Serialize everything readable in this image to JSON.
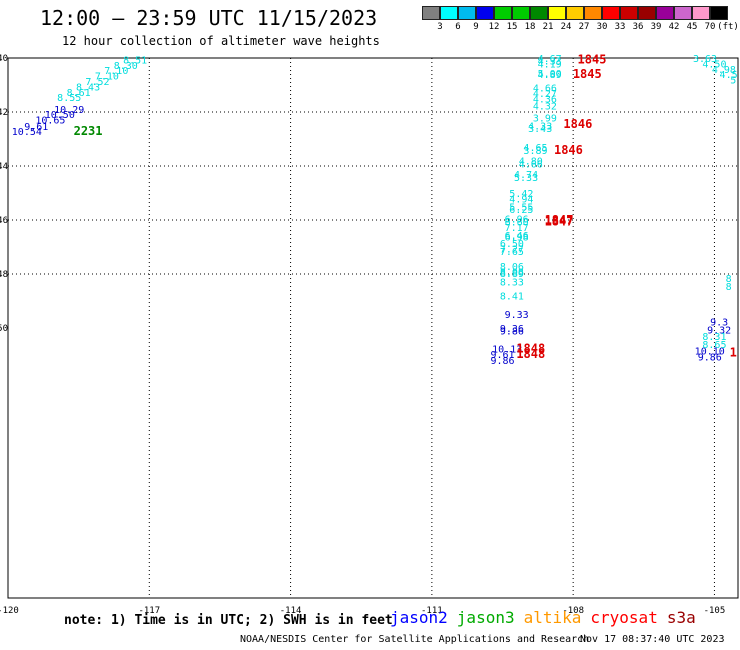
{
  "header": {
    "title": "12:00 — 23:59 UTC 11/15/2023",
    "subtitle": "12 hour collection of altimeter wave heights"
  },
  "legend": {
    "colors": [
      "#808080",
      "#00ffff",
      "#00bbee",
      "#0000ee",
      "#00cc00",
      "#00cc00",
      "#008800",
      "#ffff00",
      "#ffcc00",
      "#ff8800",
      "#ff0000",
      "#cc0000",
      "#990000",
      "#990099",
      "#cc66cc",
      "#ff99cc",
      "#000000"
    ],
    "labels": [
      "3",
      "6",
      "9",
      "12",
      "15",
      "18",
      "21",
      "24",
      "27",
      "30",
      "33",
      "36",
      "39",
      "42",
      "45",
      "70",
      "(ft)"
    ]
  },
  "chart_data": {
    "type": "scatter",
    "xlim": [
      -120,
      -104.5
    ],
    "ylim": [
      40,
      60
    ],
    "x_ticks": [
      "-120",
      "-117",
      "-114",
      "-111",
      "-108",
      "-105"
    ],
    "y_ticks": [
      "-40",
      "-42",
      "-44",
      "-46",
      "-48",
      "-50"
    ],
    "grid": true,
    "series": [
      {
        "name": "jason2",
        "color": "#0000cc",
        "points": [
          {
            "lon": -119.6,
            "lat": 42.7,
            "label": "10.54"
          },
          {
            "lon": -119.4,
            "lat": 42.51,
            "label": "9.61"
          },
          {
            "lon": -119.1,
            "lat": 42.28,
            "label": "10.65"
          },
          {
            "lon": -118.9,
            "lat": 42.08,
            "label": "10.50"
          },
          {
            "lon": -118.7,
            "lat": 41.88,
            "label": "10.29"
          },
          {
            "lon": -109.2,
            "lat": 49.48,
            "label": "9.33"
          },
          {
            "lon": -109.3,
            "lat": 50.0,
            "label": "9.36"
          },
          {
            "lon": -109.3,
            "lat": 50.1,
            "label": "9.86"
          },
          {
            "lon": -109.4,
            "lat": 50.75,
            "label": "10.13"
          },
          {
            "lon": -109.5,
            "lat": 50.97,
            "label": "9.61"
          },
          {
            "lon": -109.5,
            "lat": 51.18,
            "label": "9.86"
          },
          {
            "lon": -105.1,
            "lat": 50.83,
            "label": "10.10"
          },
          {
            "lon": -105.1,
            "lat": 51.05,
            "label": "9.86"
          },
          {
            "lon": -104.9,
            "lat": 49.76,
            "label": "9.3"
          },
          {
            "lon": -104.9,
            "lat": 50.05,
            "label": "9.32"
          }
        ]
      },
      {
        "name": "jason3",
        "color": "#008800",
        "points": [
          {
            "lon": -118.3,
            "lat": 42.7,
            "label": "2231"
          }
        ]
      },
      {
        "name": "altika",
        "color": "#00dddd",
        "points": [
          {
            "lon": -117.3,
            "lat": 40.05,
            "label": "8.51"
          },
          {
            "lon": -117.5,
            "lat": 40.25,
            "label": "8.30"
          },
          {
            "lon": -117.7,
            "lat": 40.45,
            "label": "7.10"
          },
          {
            "lon": -117.9,
            "lat": 40.65,
            "label": "7.10"
          },
          {
            "lon": -118.1,
            "lat": 40.85,
            "label": "7.52"
          },
          {
            "lon": -118.3,
            "lat": 41.05,
            "label": "8.43"
          },
          {
            "lon": -118.5,
            "lat": 41.25,
            "label": "8.61"
          },
          {
            "lon": -118.7,
            "lat": 41.45,
            "label": "8.55"
          },
          {
            "lon": -108.5,
            "lat": 40.0,
            "label": "4.67"
          },
          {
            "lon": -108.5,
            "lat": 40.1,
            "label": "4.33"
          },
          {
            "lon": -108.5,
            "lat": 40.2,
            "label": "4.19"
          },
          {
            "lon": -108.5,
            "lat": 40.55,
            "label": "5.00"
          },
          {
            "lon": -108.5,
            "lat": 40.6,
            "label": "4.89"
          },
          {
            "lon": -108.6,
            "lat": 41.1,
            "label": "4.66"
          },
          {
            "lon": -108.6,
            "lat": 41.3,
            "label": "4.27"
          },
          {
            "lon": -108.6,
            "lat": 41.5,
            "label": "4.36"
          },
          {
            "lon": -108.6,
            "lat": 41.75,
            "label": "4.32"
          },
          {
            "lon": -108.6,
            "lat": 42.2,
            "label": "3.99"
          },
          {
            "lon": -108.7,
            "lat": 42.5,
            "label": "4.33"
          },
          {
            "lon": -108.7,
            "lat": 42.6,
            "label": "3.43"
          },
          {
            "lon": -108.8,
            "lat": 43.3,
            "label": "4.65"
          },
          {
            "lon": -108.8,
            "lat": 43.4,
            "label": "3.89"
          },
          {
            "lon": -108.9,
            "lat": 43.8,
            "label": "4.80"
          },
          {
            "lon": -108.9,
            "lat": 43.9,
            "label": "4.66"
          },
          {
            "lon": -109.0,
            "lat": 44.3,
            "label": "4.74"
          },
          {
            "lon": -109.0,
            "lat": 44.4,
            "label": "5.33"
          },
          {
            "lon": -109.1,
            "lat": 45.0,
            "label": "5.42"
          },
          {
            "lon": -109.1,
            "lat": 45.2,
            "label": "4.94"
          },
          {
            "lon": -109.1,
            "lat": 45.5,
            "label": "5.55"
          },
          {
            "lon": -109.1,
            "lat": 45.6,
            "label": "6.25"
          },
          {
            "lon": -109.2,
            "lat": 45.95,
            "label": "6.96"
          },
          {
            "lon": -109.2,
            "lat": 46.05,
            "label": "6.60"
          },
          {
            "lon": -109.2,
            "lat": 46.25,
            "label": "7.17"
          },
          {
            "lon": -109.2,
            "lat": 46.55,
            "label": "6.46"
          },
          {
            "lon": -109.2,
            "lat": 46.62,
            "label": "6.98"
          },
          {
            "lon": -109.3,
            "lat": 46.85,
            "label": "6.50"
          },
          {
            "lon": -109.3,
            "lat": 47.05,
            "label": "7.27"
          },
          {
            "lon": -109.3,
            "lat": 47.15,
            "label": "7.65"
          },
          {
            "lon": -109.3,
            "lat": 47.7,
            "label": "8.06"
          },
          {
            "lon": -109.3,
            "lat": 47.9,
            "label": "8.08"
          },
          {
            "lon": -109.3,
            "lat": 47.97,
            "label": "8.89"
          },
          {
            "lon": -109.3,
            "lat": 48.28,
            "label": "8.33"
          },
          {
            "lon": -109.3,
            "lat": 48.8,
            "label": "8.41"
          },
          {
            "lon": -105.2,
            "lat": 40.0,
            "label": "3.63"
          },
          {
            "lon": -105.0,
            "lat": 40.2,
            "label": "4.50"
          },
          {
            "lon": -104.8,
            "lat": 40.4,
            "label": "4.98"
          },
          {
            "lon": -104.7,
            "lat": 40.6,
            "label": "4.5"
          },
          {
            "lon": -104.6,
            "lat": 40.8,
            "label": "5"
          },
          {
            "lon": -104.7,
            "lat": 48.15,
            "label": "8"
          },
          {
            "lon": -104.7,
            "lat": 48.45,
            "label": "8"
          },
          {
            "lon": -105.0,
            "lat": 50.3,
            "label": "8.31"
          },
          {
            "lon": -105.0,
            "lat": 50.6,
            "label": "8.65"
          }
        ]
      },
      {
        "name": "cryosat",
        "color": "#dd0000",
        "points": [
          {
            "lon": -107.6,
            "lat": 40.05,
            "label": "1845"
          },
          {
            "lon": -107.7,
            "lat": 40.6,
            "label": "1845"
          },
          {
            "lon": -107.9,
            "lat": 42.45,
            "label": "1846"
          },
          {
            "lon": -108.1,
            "lat": 43.4,
            "label": "1846"
          },
          {
            "lon": -108.3,
            "lat": 46.0,
            "label": "1847"
          },
          {
            "lon": -108.3,
            "lat": 46.05,
            "label": "1847"
          },
          {
            "lon": -108.9,
            "lat": 50.75,
            "label": "1848"
          },
          {
            "lon": -108.9,
            "lat": 50.97,
            "label": "1848"
          },
          {
            "lon": -104.6,
            "lat": 50.9,
            "label": "1"
          }
        ]
      }
    ]
  },
  "footer": {
    "note": "note: 1) Time is in UTC; 2) SWH is in feet",
    "missions": [
      {
        "label": "jason2",
        "color": "#0000ff"
      },
      {
        "label": "jason3",
        "color": "#00aa00"
      },
      {
        "label": "altika",
        "color": "#ff9900"
      },
      {
        "label": "cryosat",
        "color": "#ff0000"
      },
      {
        "label": "s3a",
        "color": "#990000"
      }
    ],
    "credit": "NOAA/NESDIS Center for Satellite Applications and Research",
    "timestamp": "Nov 17 08:37:40 UTC 2023"
  }
}
